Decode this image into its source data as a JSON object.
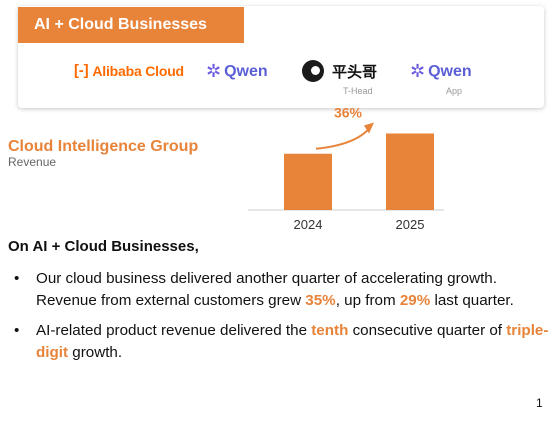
{
  "banner": {
    "title": "AI + Cloud Businesses",
    "logos": {
      "alibaba_cloud": "Alibaba Cloud",
      "qwen": "Qwen",
      "thead": "平头哥",
      "thead_sub": "T-Head",
      "qwen_app": "Qwen",
      "qwen_app_sub": "App"
    }
  },
  "section": {
    "title": "Cloud Intelligence Group",
    "subtitle": "Revenue"
  },
  "chart_data": {
    "type": "bar",
    "categories": [
      "2024",
      "2025"
    ],
    "values": [
      1.0,
      1.36
    ],
    "annotation": "36%",
    "ylim": [
      0,
      1.6
    ],
    "colors": {
      "bar": "#e8833a",
      "axis": "#cccccc",
      "annotation": "#e8833a"
    }
  },
  "heading": "On AI + Cloud Businesses,",
  "bullets": [
    {
      "segments": [
        {
          "text": "Our cloud business delivered another quarter of accelerating growth. Revenue from external customers grew ",
          "hl": false
        },
        {
          "text": "35%",
          "hl": true
        },
        {
          "text": ", up from ",
          "hl": false
        },
        {
          "text": "29%",
          "hl": true
        },
        {
          "text": " last quarter.",
          "hl": false
        }
      ]
    },
    {
      "segments": [
        {
          "text": "AI-related product revenue delivered the ",
          "hl": false
        },
        {
          "text": "tenth",
          "hl": true
        },
        {
          "text": " consecutive quarter of ",
          "hl": false
        },
        {
          "text": "triple-digit",
          "hl": true
        },
        {
          "text": " growth.",
          "hl": false
        }
      ]
    }
  ],
  "page_number": "1",
  "colors": {
    "accent": "#e8833a",
    "qwen": "#5b5fd6",
    "alibaba": "#ff6a00"
  }
}
